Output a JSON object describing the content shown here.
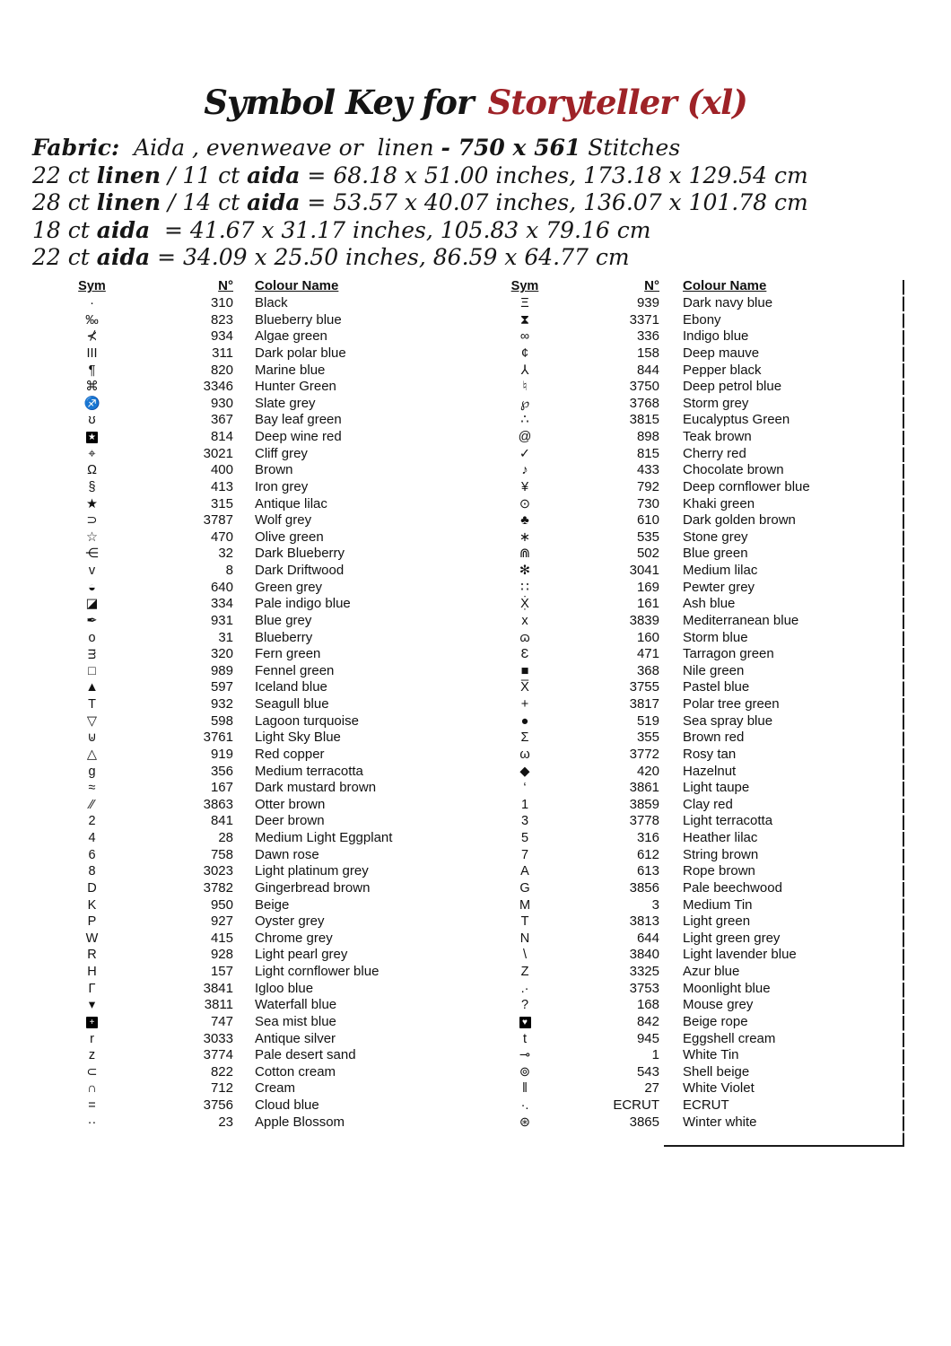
{
  "title": {
    "prefix": "Symbol Key for",
    "name": "Storyteller (xl)",
    "prefix_color": "#141414",
    "accent_color": "#9e2227"
  },
  "fabric": {
    "lines": [
      [
        {
          "t": "Fabric:",
          "b": 1
        },
        {
          "t": "  Aida , evenweave or  linen ",
          "b": 0
        },
        {
          "t": "- 750 x 561",
          "b": 1
        },
        {
          "t": " Stitches",
          "b": 0
        }
      ],
      [
        {
          "t": "22 ct ",
          "b": 0
        },
        {
          "t": "linen",
          "b": 1
        },
        {
          "t": " / 11 ct ",
          "b": 0
        },
        {
          "t": "aida",
          "b": 1
        },
        {
          "t": " = 68.18 x 51.00 inches, 173.18 x 129.54 cm",
          "b": 0
        }
      ],
      [
        {
          "t": "28 ct ",
          "b": 0
        },
        {
          "t": "linen",
          "b": 1
        },
        {
          "t": " / 14 ct ",
          "b": 0
        },
        {
          "t": "aida",
          "b": 1
        },
        {
          "t": " = 53.57 x 40.07 inches, 136.07 x 101.78 cm",
          "b": 0
        }
      ],
      [
        {
          "t": "18 ct ",
          "b": 0
        },
        {
          "t": "aida",
          "b": 1
        },
        {
          "t": "  = 41.67 x 31.17 inches, 105.83 x 79.16 cm",
          "b": 0
        }
      ],
      [
        {
          "t": "22 ct ",
          "b": 0
        },
        {
          "t": "aida",
          "b": 1
        },
        {
          "t": " = 34.09 x 25.50 inches, 86.59 x 64.77 cm",
          "b": 0
        }
      ]
    ]
  },
  "table": {
    "headers": {
      "sym": "Sym",
      "num": "N°",
      "name": "Colour Name"
    },
    "columns": [
      {
        "rows": [
          {
            "s": "·",
            "n": "310",
            "c": "Black"
          },
          {
            "s": "‰",
            "n": "823",
            "c": "Blueberry blue"
          },
          {
            "s": "⊀",
            "n": "934",
            "c": "Algae green"
          },
          {
            "s": "III",
            "n": "311",
            "c": "Dark polar blue"
          },
          {
            "s": "¶",
            "n": "820",
            "c": "Marine blue"
          },
          {
            "s": "⌘",
            "n": "3346",
            "c": "Hunter Green"
          },
          {
            "s": "♐",
            "n": "930",
            "c": "Slate grey"
          },
          {
            "s": "ʊ",
            "n": "367",
            "c": "Bay leaf green"
          },
          {
            "s": "★",
            "n": "814",
            "c": "Deep wine red",
            "inv": true
          },
          {
            "s": "⌖",
            "n": "3021",
            "c": "Cliff grey"
          },
          {
            "s": "Ω",
            "n": "400",
            "c": "Brown"
          },
          {
            "s": "§",
            "n": "413",
            "c": "Iron grey"
          },
          {
            "s": "★",
            "n": "315",
            "c": "Antique lilac"
          },
          {
            "s": "⊃",
            "n": "3787",
            "c": "Wolf grey"
          },
          {
            "s": "☆",
            "n": "470",
            "c": "Olive green"
          },
          {
            "s": "⋲",
            "n": "32",
            "c": "Dark Blueberry"
          },
          {
            "s": "v",
            "n": "8",
            "c": "Dark Driftwood"
          },
          {
            "s": "◒",
            "n": "640",
            "c": "Green grey"
          },
          {
            "s": "◪",
            "n": "334",
            "c": "Pale indigo blue"
          },
          {
            "s": "✒",
            "n": "931",
            "c": "Blue grey"
          },
          {
            "s": "o",
            "n": "31",
            "c": "Blueberry"
          },
          {
            "s": "ᴟ",
            "n": "320",
            "c": "Fern green"
          },
          {
            "s": "□",
            "n": "989",
            "c": "Fennel green"
          },
          {
            "s": "▲",
            "n": "597",
            "c": "Iceland blue"
          },
          {
            "s": "T",
            "n": "932",
            "c": "Seagull blue"
          },
          {
            "s": "▽",
            "n": "598",
            "c": "Lagoon turquoise"
          },
          {
            "s": "⊍",
            "n": "3761",
            "c": "Light Sky Blue"
          },
          {
            "s": "△",
            "n": "919",
            "c": "Red copper"
          },
          {
            "s": "g",
            "n": "356",
            "c": "Medium terracotta"
          },
          {
            "s": "≈",
            "n": "167",
            "c": "Dark mustard brown"
          },
          {
            "s": "∕∕",
            "n": "3863",
            "c": "Otter brown"
          },
          {
            "s": "2",
            "n": "841",
            "c": "Deer brown"
          },
          {
            "s": "4",
            "n": "28",
            "c": "Medium Light Eggplant"
          },
          {
            "s": "6",
            "n": "758",
            "c": "Dawn rose"
          },
          {
            "s": "8",
            "n": "3023",
            "c": "Light platinum grey"
          },
          {
            "s": "D",
            "n": "3782",
            "c": "Gingerbread brown"
          },
          {
            "s": "K",
            "n": "950",
            "c": "Beige"
          },
          {
            "s": "P",
            "n": "927",
            "c": "Oyster grey"
          },
          {
            "s": "W",
            "n": "415",
            "c": "Chrome grey"
          },
          {
            "s": "R",
            "n": "928",
            "c": "Light pearl grey"
          },
          {
            "s": "H",
            "n": "157",
            "c": "Light cornflower blue"
          },
          {
            "s": "Γ",
            "n": "3841",
            "c": "Igloo blue"
          },
          {
            "s": "▾",
            "n": "3811",
            "c": "Waterfall blue"
          },
          {
            "s": "+",
            "n": "747",
            "c": "Sea mist blue",
            "inv": true
          },
          {
            "s": "r",
            "n": "3033",
            "c": "Antique silver"
          },
          {
            "s": "z",
            "n": "3774",
            "c": "Pale desert sand"
          },
          {
            "s": "⊂",
            "n": "822",
            "c": "Cotton cream"
          },
          {
            "s": "∩",
            "n": "712",
            "c": "Cream"
          },
          {
            "s": "=",
            "n": "3756",
            "c": "Cloud blue"
          },
          {
            "s": "··",
            "n": "23",
            "c": "Apple Blossom"
          }
        ]
      },
      {
        "rows": [
          {
            "s": "Ξ",
            "n": "939",
            "c": "Dark navy blue"
          },
          {
            "s": "⧗",
            "n": "3371",
            "c": "Ebony"
          },
          {
            "s": "∞",
            "n": "336",
            "c": "Indigo blue"
          },
          {
            "s": "¢",
            "n": "158",
            "c": "Deep mauve"
          },
          {
            "s": "⅄",
            "n": "844",
            "c": "Pepper black"
          },
          {
            "s": "♮",
            "n": "3750",
            "c": "Deep petrol blue"
          },
          {
            "s": "℘",
            "n": "3768",
            "c": "Storm grey"
          },
          {
            "s": "∴",
            "n": "3815",
            "c": "Eucalyptus Green"
          },
          {
            "s": "@",
            "n": "898",
            "c": "Teak brown"
          },
          {
            "s": "✓",
            "n": "815",
            "c": "Cherry red"
          },
          {
            "s": "♪",
            "n": "433",
            "c": "Chocolate brown"
          },
          {
            "s": "¥",
            "n": "792",
            "c": "Deep cornflower blue"
          },
          {
            "s": "⊙",
            "n": "730",
            "c": "Khaki green"
          },
          {
            "s": "♣",
            "n": "610",
            "c": "Dark golden brown"
          },
          {
            "s": "∗",
            "n": "535",
            "c": "Stone grey"
          },
          {
            "s": "⋒",
            "n": "502",
            "c": "Blue green"
          },
          {
            "s": "✻",
            "n": "3041",
            "c": "Medium lilac"
          },
          {
            "s": "∷",
            "n": "169",
            "c": "Pewter grey"
          },
          {
            "s": "Ẋ̣",
            "n": "161",
            "c": "Ash blue"
          },
          {
            "s": "x",
            "n": "3839",
            "c": "Mediterranean blue"
          },
          {
            "s": "ɷ",
            "n": "160",
            "c": "Storm blue"
          },
          {
            "s": "Ɛ",
            "n": "471",
            "c": "Tarragon green"
          },
          {
            "s": "■",
            "n": "368",
            "c": "Nile green"
          },
          {
            "s": "X̅",
            "n": "3755",
            "c": "Pastel blue"
          },
          {
            "s": "+",
            "n": "3817",
            "c": "Polar tree green"
          },
          {
            "s": "●",
            "n": "519",
            "c": "Sea spray blue"
          },
          {
            "s": "Σ",
            "n": "355",
            "c": "Brown red"
          },
          {
            "s": "ω",
            "n": "3772",
            "c": "Rosy tan"
          },
          {
            "s": "◆",
            "n": "420",
            "c": "Hazelnut"
          },
          {
            "s": "‘",
            "n": "3861",
            "c": "Light taupe"
          },
          {
            "s": "1",
            "n": "3859",
            "c": "Clay red"
          },
          {
            "s": "3",
            "n": "3778",
            "c": "Light terracotta"
          },
          {
            "s": "5",
            "n": "316",
            "c": "Heather lilac"
          },
          {
            "s": "7",
            "n": "612",
            "c": "String brown"
          },
          {
            "s": "A",
            "n": "613",
            "c": "Rope brown"
          },
          {
            "s": "G",
            "n": "3856",
            "c": "Pale beechwood"
          },
          {
            "s": "M",
            "n": "3",
            "c": "Medium Tin"
          },
          {
            "s": "T",
            "n": "3813",
            "c": "Light green"
          },
          {
            "s": "N",
            "n": "644",
            "c": "Light green grey"
          },
          {
            "s": "\\",
            "n": "3840",
            "c": "Light lavender blue"
          },
          {
            "s": "Z",
            "n": "3325",
            "c": "Azur blue"
          },
          {
            "s": ".·",
            "n": "3753",
            "c": "Moonlight blue"
          },
          {
            "s": "?",
            "n": "168",
            "c": "Mouse grey"
          },
          {
            "s": "♥",
            "n": "842",
            "c": "Beige rope",
            "inv": true
          },
          {
            "s": "t",
            "n": "945",
            "c": "Eggshell cream"
          },
          {
            "s": "⊸",
            "n": "1",
            "c": "White Tin"
          },
          {
            "s": "⊚",
            "n": "543",
            "c": "Shell beige"
          },
          {
            "s": "ǁ",
            "n": "27",
            "c": "White Violet"
          },
          {
            "s": "·.",
            "n": "ECRUT",
            "c": "ECRUT"
          },
          {
            "s": "⊛",
            "n": "3865",
            "c": "Winter white"
          }
        ]
      }
    ]
  }
}
